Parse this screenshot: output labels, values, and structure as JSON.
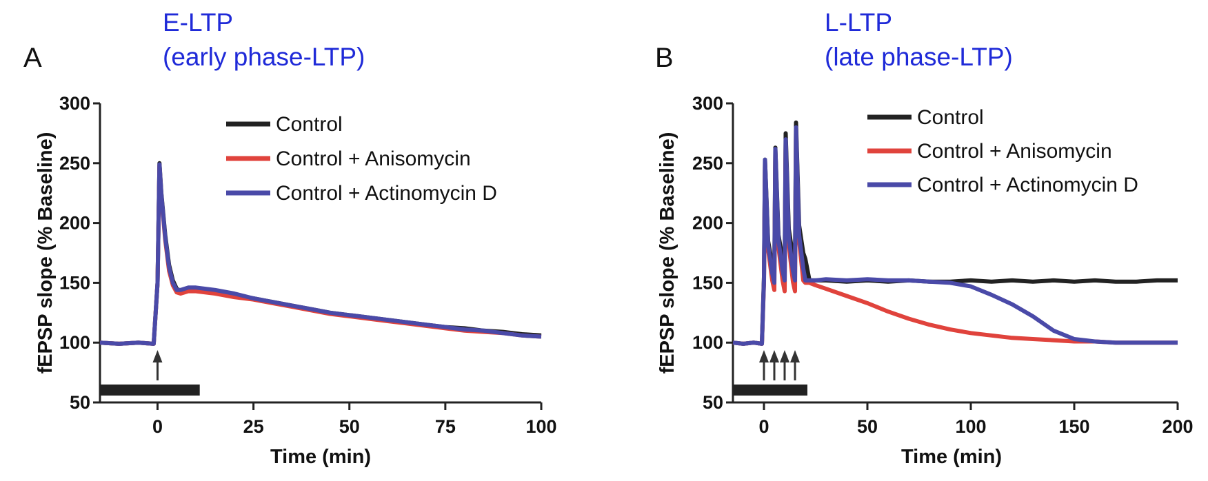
{
  "chart_data": [
    {
      "panel": "A",
      "type": "line",
      "title": "E-LTP",
      "subtitle": "(early phase-LTP)",
      "xlabel": "Time  (min)",
      "ylabel": "fEPSP slope  (% Baseline)",
      "xlim": [
        -15,
        100
      ],
      "ylim": [
        50,
        300
      ],
      "xticks": [
        0,
        25,
        50,
        75,
        100
      ],
      "yticks": [
        50,
        100,
        150,
        200,
        250,
        300
      ],
      "legend": [
        "Control",
        "Control + Anisomycin",
        "Control + Actinomycin D"
      ],
      "stimulus_arrows": [
        0
      ],
      "stim_bar": [
        -15,
        11
      ],
      "series": [
        {
          "name": "Control",
          "color": "#222222",
          "x": [
            -15,
            -10,
            -5,
            -1,
            0,
            0.5,
            1,
            2,
            3,
            4,
            5,
            6,
            8,
            10,
            15,
            20,
            25,
            30,
            35,
            40,
            45,
            50,
            55,
            60,
            65,
            70,
            75,
            80,
            85,
            90,
            95,
            100
          ],
          "y": [
            100,
            99,
            100,
            99,
            150,
            250,
            225,
            190,
            165,
            152,
            145,
            143,
            145,
            145,
            143,
            140,
            137,
            134,
            131,
            128,
            125,
            123,
            121,
            119,
            117,
            115,
            113,
            112,
            110,
            109,
            107,
            106
          ]
        },
        {
          "name": "Control + Anisomycin",
          "color": "#e0433c",
          "x": [
            -15,
            -10,
            -5,
            -1,
            0,
            0.5,
            1,
            2,
            3,
            4,
            5,
            6,
            8,
            10,
            15,
            20,
            25,
            30,
            35,
            40,
            45,
            50,
            55,
            60,
            65,
            70,
            75,
            80,
            85,
            90,
            95,
            100
          ],
          "y": [
            100,
            99,
            100,
            99,
            150,
            248,
            222,
            186,
            160,
            148,
            142,
            141,
            143,
            143,
            141,
            138,
            136,
            133,
            130,
            127,
            124,
            122,
            120,
            118,
            116,
            114,
            112,
            110,
            109,
            108,
            106,
            105
          ]
        },
        {
          "name": "Control + Actinomycin D",
          "color": "#4a4aa8",
          "x": [
            -15,
            -10,
            -5,
            -1,
            0,
            0.5,
            1,
            2,
            3,
            4,
            5,
            6,
            8,
            10,
            15,
            20,
            25,
            30,
            35,
            40,
            45,
            50,
            55,
            60,
            65,
            70,
            75,
            80,
            85,
            90,
            95,
            100
          ],
          "y": [
            100,
            99,
            100,
            99,
            150,
            249,
            224,
            188,
            163,
            150,
            144,
            144,
            146,
            146,
            144,
            141,
            137,
            134,
            131,
            128,
            125,
            123,
            121,
            119,
            117,
            115,
            113,
            111,
            110,
            108,
            106,
            105
          ]
        }
      ]
    },
    {
      "panel": "B",
      "type": "line",
      "title": "L-LTP",
      "subtitle": "(late phase-LTP)",
      "xlabel": "Time (min)",
      "ylabel": "fEPSP slope  (% Baseline)",
      "xlim": [
        -15,
        200
      ],
      "ylim": [
        50,
        300
      ],
      "xticks": [
        0,
        50,
        100,
        150,
        200
      ],
      "yticks": [
        50,
        100,
        150,
        200,
        250,
        300
      ],
      "legend": [
        "Control",
        "Control + Anisomycin",
        "Control + Actinomycin D"
      ],
      "stimulus_arrows": [
        0,
        5,
        10,
        15
      ],
      "stim_bar": [
        -15,
        21
      ],
      "series": [
        {
          "name": "Control",
          "color": "#222222",
          "x": [
            -15,
            -10,
            -5,
            -1,
            0,
            0.5,
            2,
            4,
            5,
            5.5,
            7,
            9,
            10,
            10.5,
            12,
            14,
            15,
            15.5,
            17,
            19,
            20,
            22,
            25,
            30,
            40,
            50,
            60,
            70,
            80,
            90,
            100,
            110,
            120,
            130,
            140,
            150,
            160,
            170,
            180,
            190,
            200
          ],
          "y": [
            100,
            99,
            100,
            99,
            155,
            253,
            185,
            165,
            158,
            263,
            190,
            170,
            162,
            275,
            195,
            172,
            165,
            284,
            198,
            175,
            170,
            152,
            152,
            152,
            151,
            152,
            151,
            152,
            151,
            151,
            152,
            151,
            152,
            151,
            152,
            151,
            152,
            151,
            151,
            152,
            152
          ]
        },
        {
          "name": "Control + Anisomycin",
          "color": "#e0433c",
          "x": [
            -15,
            -10,
            -5,
            -1,
            0,
            0.5,
            2,
            4,
            5,
            5.5,
            7,
            9,
            10,
            10.5,
            12,
            14,
            15,
            15.5,
            17,
            19,
            20,
            22,
            25,
            30,
            40,
            50,
            60,
            70,
            80,
            90,
            100,
            110,
            120,
            130,
            140,
            150,
            160,
            170,
            180,
            190,
            200
          ],
          "y": [
            100,
            99,
            100,
            99,
            150,
            250,
            178,
            152,
            144,
            258,
            180,
            152,
            143,
            266,
            182,
            151,
            143,
            275,
            185,
            152,
            150,
            150,
            148,
            145,
            139,
            133,
            126,
            120,
            115,
            111,
            108,
            106,
            104,
            103,
            102,
            101,
            101,
            100,
            100,
            100,
            100
          ]
        },
        {
          "name": "Control + Actinomycin D",
          "color": "#4a4aa8",
          "x": [
            -15,
            -10,
            -5,
            -1,
            0,
            0.5,
            2,
            4,
            5,
            5.5,
            7,
            9,
            10,
            10.5,
            12,
            14,
            15,
            15.5,
            17,
            19,
            20,
            22,
            25,
            30,
            40,
            50,
            60,
            70,
            80,
            90,
            100,
            110,
            120,
            130,
            140,
            150,
            160,
            170,
            180,
            190,
            200
          ],
          "y": [
            100,
            99,
            100,
            99,
            152,
            253,
            182,
            158,
            150,
            262,
            186,
            160,
            152,
            270,
            188,
            160,
            152,
            280,
            190,
            162,
            152,
            152,
            152,
            153,
            152,
            153,
            152,
            152,
            151,
            150,
            147,
            140,
            132,
            122,
            110,
            103,
            101,
            100,
            100,
            100,
            100
          ]
        }
      ]
    }
  ]
}
